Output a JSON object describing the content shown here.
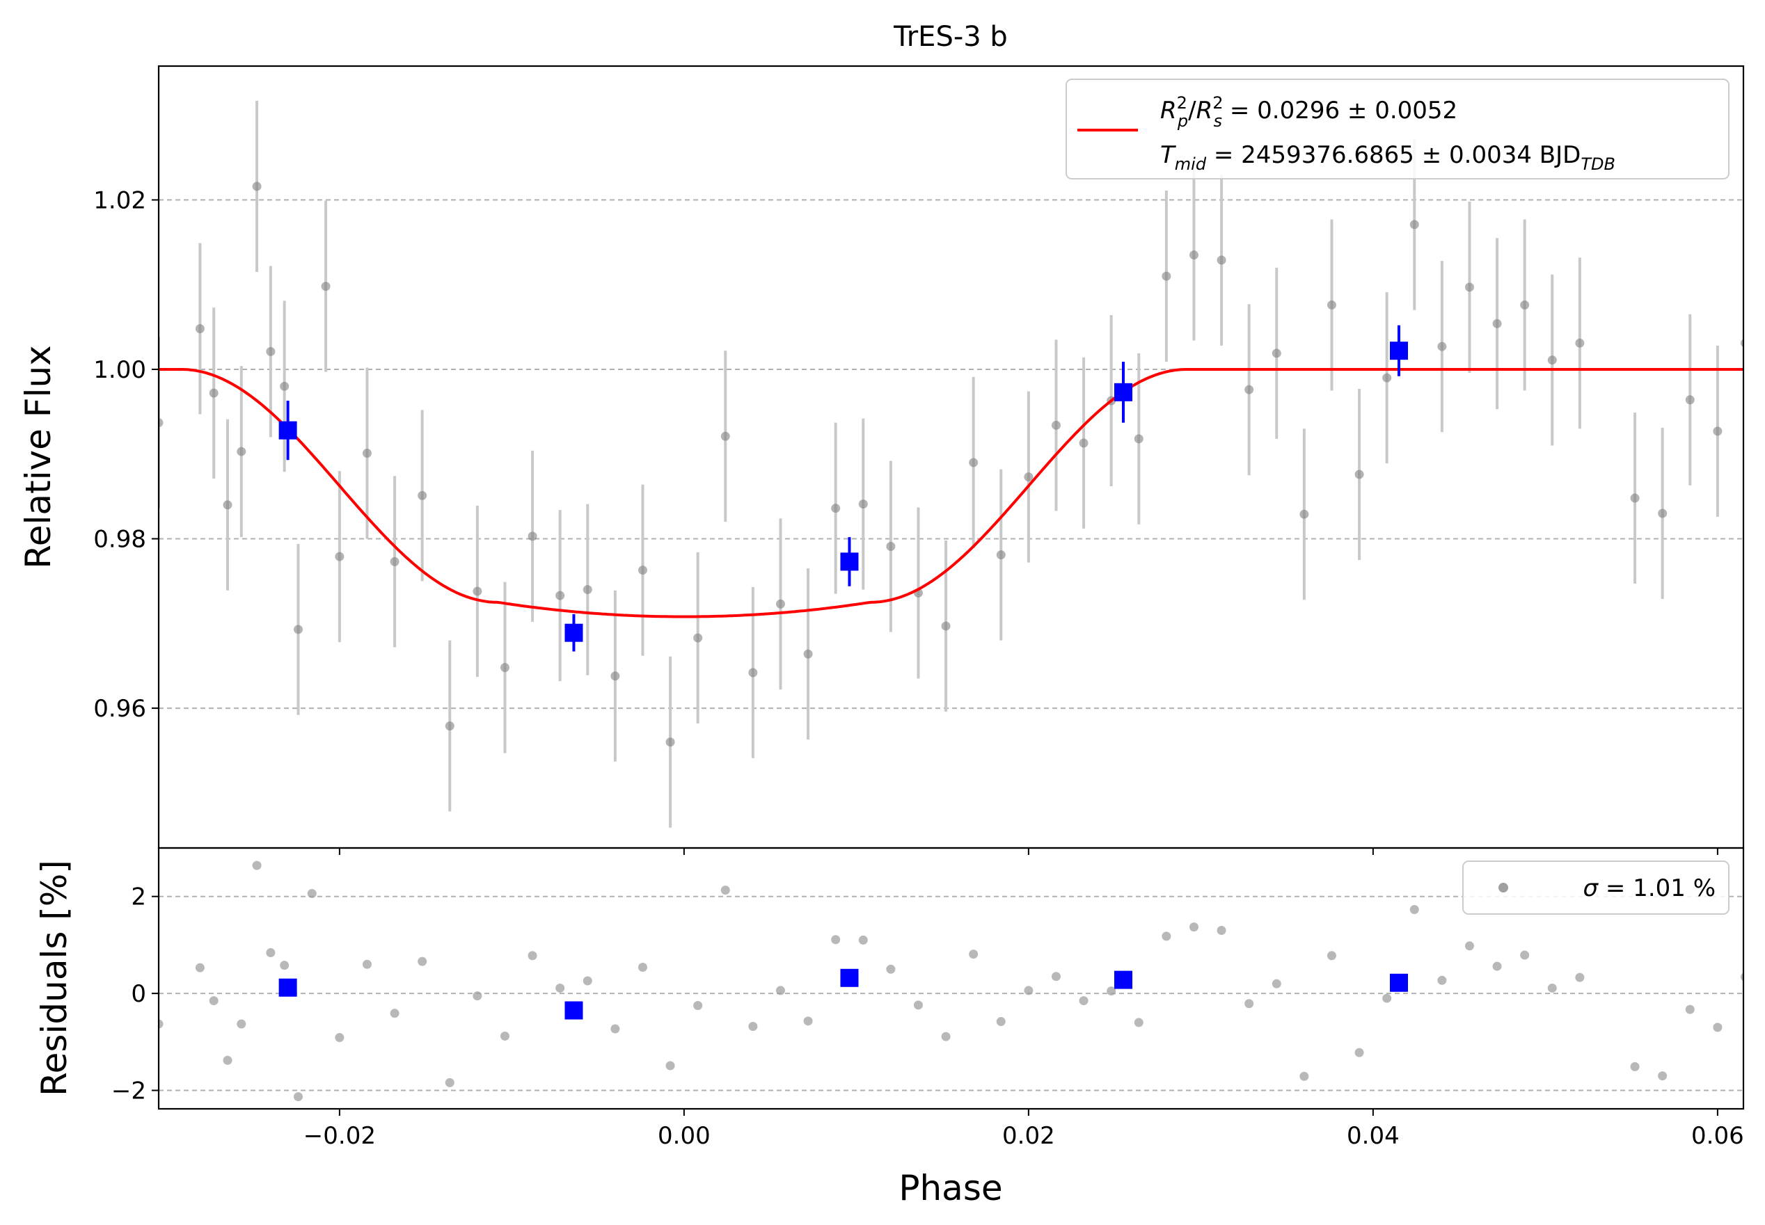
{
  "chart_data": [
    {
      "type": "scatter",
      "panel": "main",
      "title": "TrES-3 b",
      "xlabel": "Phase",
      "ylabel": "Relative Flux",
      "xlim": [
        -0.0305,
        0.0615
      ],
      "ylim": [
        0.9435,
        1.0358
      ],
      "xticks": [
        -0.02,
        0.0,
        0.02,
        0.04,
        0.06
      ],
      "xtick_labels": [
        "−0.02",
        "0.00",
        "0.02",
        "0.04",
        "0.06"
      ],
      "yticks": [
        0.96,
        0.98,
        1.0,
        1.02
      ],
      "ytick_labels": [
        "0.96",
        "0.98",
        "1.00",
        "1.02"
      ],
      "grid": "horizontal dashed",
      "legend_position": "top-right",
      "legend": {
        "model_line": {
          "symbol": "R",
          "sub": "p",
          "sup": "2",
          "symbol2": "R",
          "sub2": "s",
          "sup2": "2",
          "value": " = 0.0296 ± 0.0052",
          "tmid_symbol": "T",
          "tmid_sub": "mid",
          "tmid_value": " = 2459376.6865 ± 0.0034 BJD",
          "tmid_unit_sub": "TDB"
        }
      },
      "series": [
        {
          "kind": "data_points",
          "color": "#808080",
          "error_color": "#c8c8c8",
          "yerr": 0.0101,
          "x": [
            -0.0305,
            -0.0281,
            -0.0273,
            -0.0265,
            -0.0257,
            -0.0248,
            -0.024,
            -0.0232,
            -0.0224,
            -0.0208,
            -0.02,
            -0.0184,
            -0.0168,
            -0.0152,
            -0.0136,
            -0.012,
            -0.0104,
            -0.0088,
            -0.0072,
            -0.0056,
            -0.004,
            -0.0024,
            -0.0008,
            0.0008,
            0.0024,
            0.004,
            0.0056,
            0.0072,
            0.0088,
            0.0104,
            0.012,
            0.0136,
            0.0152,
            0.0168,
            0.0184,
            0.02,
            0.0216,
            0.0232,
            0.0248,
            0.0264,
            0.028,
            0.0296,
            0.0312,
            0.0328,
            0.0344,
            0.036,
            0.0376,
            0.0392,
            0.0408,
            0.0424,
            0.044,
            0.0456,
            0.0472,
            0.0488,
            0.0504,
            0.052,
            0.0552,
            0.0568,
            0.0584,
            0.06,
            0.0616
          ],
          "y": [
            0.9937,
            1.0048,
            0.9972,
            0.984,
            0.9903,
            1.0216,
            1.0021,
            0.998,
            0.9693,
            1.0098,
            0.9779,
            0.9901,
            0.9773,
            0.9851,
            0.9579,
            0.9738,
            0.9648,
            0.9803,
            0.9733,
            0.974,
            0.9638,
            0.9763,
            0.956,
            0.9683,
            0.9921,
            0.9642,
            0.9723,
            0.9664,
            0.9836,
            0.9841,
            0.9791,
            0.9736,
            0.9697,
            0.989,
            0.9781,
            0.9873,
            0.9934,
            0.9913,
            0.9963,
            0.9918,
            1.011,
            1.0135,
            1.0129,
            0.9976,
            1.0019,
            0.9829,
            1.0076,
            0.9876,
            0.999,
            1.0171,
            1.0027,
            1.0097,
            1.0054,
            1.0076,
            1.0011,
            1.0031,
            0.9848,
            0.983,
            0.9964,
            0.9927,
            1.0031
          ]
        },
        {
          "kind": "binned",
          "color": "#0000ff",
          "x": [
            -0.023,
            -0.0064,
            0.0096,
            0.0255,
            0.0415
          ],
          "y": [
            0.9928,
            0.9689,
            0.9773,
            0.9973,
            1.0022
          ],
          "yerr": [
            0.0035,
            0.0022,
            0.0029,
            0.0036,
            0.003
          ]
        },
        {
          "kind": "model",
          "color": "#ff0000",
          "depth": 0.0292,
          "t14_half": 0.0292,
          "t23_half": 0.0108
        }
      ]
    },
    {
      "type": "scatter",
      "panel": "residuals",
      "xlabel": "Phase",
      "ylabel": "Residuals [%]",
      "xlim": [
        -0.0305,
        0.0615
      ],
      "ylim": [
        -2.38,
        3.0
      ],
      "yticks": [
        -2,
        0,
        2
      ],
      "ytick_labels": [
        "−2",
        "0",
        "2"
      ],
      "grid": "horizontal dashed",
      "legend_position": "top-right",
      "legend": {
        "sigma_symbol": "σ",
        "sigma_value": " = 1.01 %"
      },
      "series": [
        {
          "kind": "residual_points",
          "color": "#a0a0a0",
          "x": [
            -0.0305,
            -0.0281,
            -0.0273,
            -0.0265,
            -0.0257,
            -0.0248,
            -0.024,
            -0.0232,
            -0.0224,
            -0.0216,
            -0.02,
            -0.0184,
            -0.0168,
            -0.0152,
            -0.0136,
            -0.012,
            -0.0104,
            -0.0088,
            -0.0072,
            -0.0056,
            -0.004,
            -0.0024,
            -0.0008,
            0.0008,
            0.0024,
            0.004,
            0.0056,
            0.0072,
            0.0088,
            0.0104,
            0.012,
            0.0136,
            0.0152,
            0.0168,
            0.0184,
            0.02,
            0.0216,
            0.0232,
            0.0248,
            0.0264,
            0.028,
            0.0296,
            0.0312,
            0.0328,
            0.0344,
            0.036,
            0.0376,
            0.0392,
            0.0408,
            0.0424,
            0.044,
            0.0456,
            0.0472,
            0.0488,
            0.0504,
            0.052,
            0.0552,
            0.0568,
            0.0584,
            0.06,
            0.0616
          ],
          "y": [
            -0.63,
            0.53,
            -0.15,
            -1.38,
            -0.63,
            2.64,
            0.84,
            0.58,
            -2.13,
            2.06,
            -0.91,
            0.6,
            -0.41,
            0.66,
            -1.84,
            -0.05,
            -0.88,
            0.78,
            0.11,
            0.26,
            -0.73,
            0.54,
            -1.49,
            -0.25,
            2.13,
            -0.68,
            0.06,
            -0.57,
            1.11,
            1.1,
            0.5,
            -0.24,
            -0.89,
            0.81,
            -0.58,
            0.06,
            0.35,
            -0.15,
            0.05,
            -0.6,
            1.18,
            1.37,
            1.3,
            -0.21,
            0.2,
            -1.71,
            0.78,
            -1.22,
            -0.1,
            1.73,
            0.27,
            0.98,
            0.56,
            0.79,
            0.11,
            0.33,
            -1.51,
            -1.7,
            -0.33,
            -0.7,
            0.34
          ]
        },
        {
          "kind": "binned_residuals",
          "color": "#0000ff",
          "x": [
            -0.023,
            -0.0064,
            0.0096,
            0.0255,
            0.0415
          ],
          "y": [
            0.12,
            -0.35,
            0.32,
            0.28,
            0.22
          ]
        }
      ]
    }
  ]
}
